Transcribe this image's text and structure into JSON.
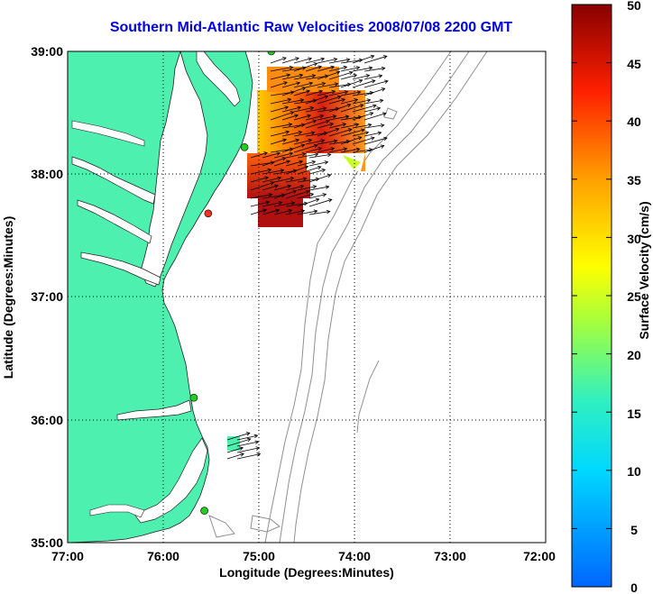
{
  "title": "Southern Mid-Atlantic Raw Velocities 2008/07/08 2200 GMT",
  "x_axis": {
    "label": "Longitude (Degrees:Minutes)",
    "ticks": [
      "77:00",
      "76:00",
      "75:00",
      "74:00",
      "73:00",
      "72:00"
    ]
  },
  "y_axis": {
    "label": "Latitude (Degrees:Minutes)",
    "ticks": [
      "39:00",
      "38:00",
      "37:00",
      "36:00",
      "35:00"
    ]
  },
  "colorbar": {
    "label": "Surface Velocity (cm/s)",
    "min": 0,
    "max": 50,
    "ticks": [
      "50",
      "45",
      "40",
      "35",
      "30",
      "25",
      "20",
      "15",
      "10",
      "5",
      "0"
    ]
  },
  "colors": {
    "land": "#4ef0b0",
    "title": "#0000e0",
    "contour": "#909090",
    "station_active": "#22cc22",
    "station_inactive": "#ee3322"
  },
  "chart_data": {
    "type": "heatmap",
    "title": "Southern Mid-Atlantic Raw Velocities 2008/07/08 2200 GMT",
    "xlabel": "Longitude (Degrees:Minutes)",
    "ylabel": "Latitude (Degrees:Minutes)",
    "xlim": [
      -77,
      -72
    ],
    "ylim": [
      35,
      39
    ],
    "grid": true,
    "colorbar_range": [
      0,
      50
    ],
    "colorbar_label": "Surface Velocity (cm/s)",
    "stations": [
      {
        "lon": -74.87,
        "lat": 39.0,
        "status": "active"
      },
      {
        "lon": -75.15,
        "lat": 38.22,
        "status": "active"
      },
      {
        "lon": -75.53,
        "lat": 37.68,
        "status": "inactive"
      },
      {
        "lon": -75.68,
        "lat": 36.18,
        "status": "active"
      },
      {
        "lon": -75.57,
        "lat": 35.26,
        "status": "active"
      }
    ]
  }
}
